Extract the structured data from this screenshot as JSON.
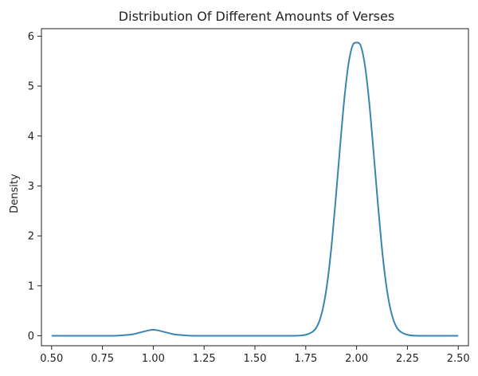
{
  "chart_data": {
    "type": "line",
    "title": "Distribution Of Different Amounts of Verses",
    "xlabel": "",
    "ylabel": "Density",
    "xlim": [
      0.45,
      2.55
    ],
    "ylim": [
      -0.2,
      6.15
    ],
    "grid": false,
    "x_ticks": [
      0.5,
      0.75,
      1.0,
      1.25,
      1.5,
      1.75,
      2.0,
      2.25,
      2.5
    ],
    "x_tick_labels": [
      "0.50",
      "0.75",
      "1.00",
      "1.25",
      "1.50",
      "1.75",
      "2.00",
      "2.25",
      "2.50"
    ],
    "y_ticks": [
      0,
      1,
      2,
      3,
      4,
      5,
      6
    ],
    "y_tick_labels": [
      "0",
      "1",
      "2",
      "3",
      "4",
      "5",
      "6"
    ],
    "series": [
      {
        "color": "#3b84b2",
        "x": [
          0.5,
          0.7,
          0.8,
          0.85,
          0.9,
          0.93,
          0.96,
          0.98,
          1.0,
          1.02,
          1.04,
          1.07,
          1.1,
          1.15,
          1.2,
          1.3,
          1.5,
          1.7,
          1.75,
          1.78,
          1.8,
          1.82,
          1.84,
          1.86,
          1.88,
          1.9,
          1.92,
          1.94,
          1.96,
          1.98,
          2.0,
          2.02,
          2.04,
          2.06,
          2.08,
          2.1,
          2.12,
          2.14,
          2.16,
          2.18,
          2.2,
          2.22,
          2.25,
          2.3,
          2.5
        ],
        "y": [
          0.0,
          0.0,
          0.0,
          0.01,
          0.03,
          0.06,
          0.09,
          0.11,
          0.12,
          0.11,
          0.09,
          0.06,
          0.03,
          0.01,
          0.0,
          0.0,
          0.0,
          0.0,
          0.02,
          0.07,
          0.15,
          0.33,
          0.66,
          1.19,
          1.94,
          2.87,
          3.85,
          4.76,
          5.44,
          5.81,
          5.87,
          5.81,
          5.44,
          4.76,
          3.85,
          2.87,
          1.94,
          1.19,
          0.66,
          0.33,
          0.15,
          0.07,
          0.02,
          0.0,
          0.0
        ]
      }
    ]
  }
}
